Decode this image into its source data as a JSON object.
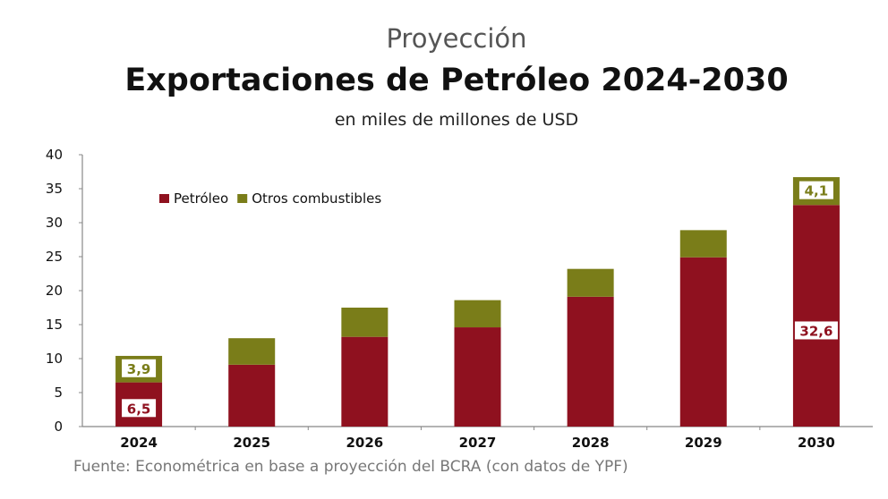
{
  "chart_data": {
    "type": "bar",
    "stacked": true,
    "supertitle": "Proyección",
    "title": "Exportaciones de Petróleo 2024-2030",
    "subtitle": "en miles de millones de USD",
    "source": "Fuente: Econométrica en base a proyección del BCRA (con datos de YPF)",
    "categories": [
      "2024",
      "2025",
      "2026",
      "2027",
      "2028",
      "2029",
      "2030"
    ],
    "series": [
      {
        "name": "Petróleo",
        "color": "#8f111f",
        "values": [
          6.5,
          9.1,
          13.2,
          14.6,
          19.1,
          24.9,
          32.6
        ]
      },
      {
        "name": "Otros combustibles",
        "color": "#7a7d19",
        "values": [
          3.9,
          3.9,
          4.3,
          4.0,
          4.1,
          4.0,
          4.1
        ]
      }
    ],
    "data_labels": [
      {
        "category": "2024",
        "series": 0,
        "text": "6,5"
      },
      {
        "category": "2024",
        "series": 1,
        "text": "3,9"
      },
      {
        "category": "2030",
        "series": 0,
        "text": "32,6"
      },
      {
        "category": "2030",
        "series": 1,
        "text": "4,1"
      }
    ],
    "ylim": [
      0,
      40
    ],
    "yticks": [
      0,
      5,
      10,
      15,
      20,
      25,
      30,
      35,
      40
    ],
    "legend": "top-left",
    "grid": false
  }
}
